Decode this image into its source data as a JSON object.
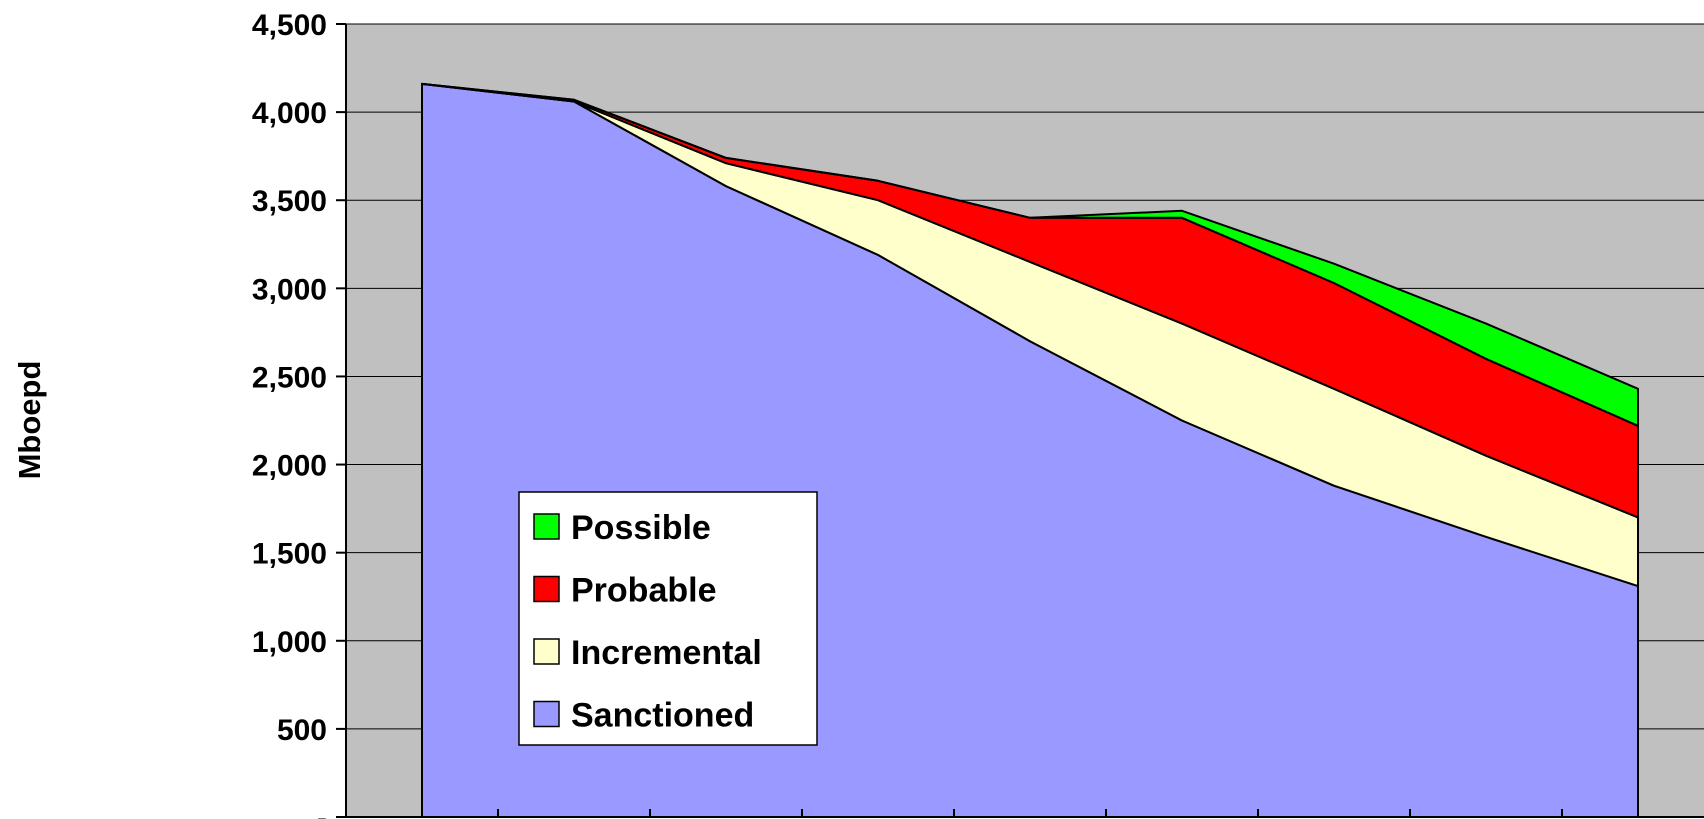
{
  "chart_data": {
    "type": "area",
    "stacked": true,
    "ylabel": "Mboepd",
    "xlabel": "",
    "title": "",
    "ylim": [
      0,
      4500
    ],
    "yticks": [
      0,
      500,
      1000,
      1500,
      2000,
      2500,
      3000,
      3500,
      4000,
      4500
    ],
    "ytick_labels": [
      "-",
      "500",
      "1,000",
      "1,500",
      "2,000",
      "2,500",
      "3,000",
      "3,500",
      "4,000",
      "4,500"
    ],
    "x_points": 9,
    "x_categories": 9,
    "grid": "horizontal",
    "legend_position": "bottom-left inside plot",
    "colors": {
      "plot_background": "#c0c0c0",
      "Sanctioned": "#9999ff",
      "Incremental": "#ffffcc",
      "Probable": "#ff0000",
      "Possible": "#00ff00"
    },
    "series": [
      {
        "name": "Sanctioned",
        "values": [
          4160,
          4060,
          3580,
          3190,
          2700,
          2250,
          1880,
          1590,
          1310
        ]
      },
      {
        "name": "Incremental",
        "values": [
          0,
          0,
          130,
          310,
          450,
          550,
          550,
          460,
          390
        ]
      },
      {
        "name": "Probable",
        "values": [
          0,
          10,
          30,
          110,
          250,
          600,
          600,
          550,
          520
        ]
      },
      {
        "name": "Possible",
        "values": [
          0,
          0,
          0,
          0,
          0,
          40,
          110,
          200,
          210
        ]
      }
    ],
    "legend": [
      "Possible",
      "Probable",
      "Incremental",
      "Sanctioned"
    ]
  }
}
